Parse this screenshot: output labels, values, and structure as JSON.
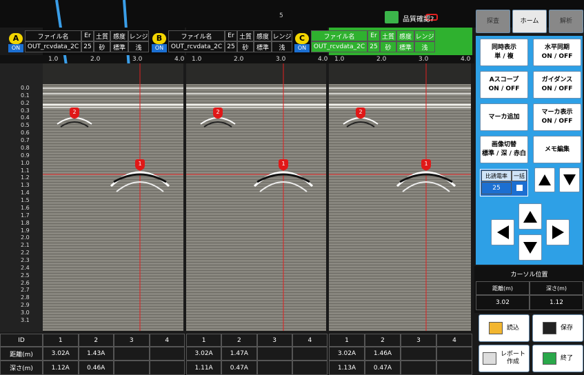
{
  "toolbar": {
    "page": "5",
    "status_label": "品質確認?"
  },
  "tabs": [
    "探査",
    "ホーム",
    "解析"
  ],
  "panels": [
    {
      "letter": "A",
      "state": "ON",
      "headers": [
        "ファイル名",
        "Er",
        "土質",
        "感度",
        "レンジ"
      ],
      "values": [
        "OUT_rcvdata_2C",
        "25",
        "砂",
        "標準",
        "浅"
      ],
      "x_ticks": [
        "1.0",
        "2.0",
        "3.0",
        "4.0"
      ],
      "markers": [
        "2",
        "1"
      ],
      "ids": [
        "1",
        "2",
        "3",
        "4"
      ],
      "distance": [
        "3.02A",
        "1.43A"
      ],
      "depth": [
        "1.12A",
        "0.46A"
      ]
    },
    {
      "letter": "B",
      "state": "ON",
      "headers": [
        "ファイル名",
        "Er",
        "土質",
        "感度",
        "レンジ"
      ],
      "values": [
        "OUT_rcvdata_2C",
        "25",
        "砂",
        "標準",
        "浅"
      ],
      "x_ticks": [
        "1.0",
        "2.0",
        "3.0",
        "4.0"
      ],
      "markers": [
        "2",
        "1"
      ],
      "ids": [
        "1",
        "2",
        "3",
        "4"
      ],
      "distance": [
        "3.02A",
        "1.47A"
      ],
      "depth": [
        "1.11A",
        "0.47A"
      ]
    },
    {
      "letter": "C",
      "state": "ON",
      "headers": [
        "ファイル名",
        "Er",
        "土質",
        "感度",
        "レンジ"
      ],
      "values": [
        "OUT_rcvdata_2C",
        "25",
        "砂",
        "標準",
        "浅"
      ],
      "x_ticks": [
        "1.0",
        "2.0",
        "3.0",
        "4.0"
      ],
      "markers": [
        "2",
        "1"
      ],
      "ids": [
        "1",
        "2",
        "3",
        "4"
      ],
      "distance": [
        "3.02A",
        "1.46A"
      ],
      "depth": [
        "1.13A",
        "0.47A"
      ]
    }
  ],
  "depth_ticks": [
    "0.0",
    "0.1",
    "0.2",
    "0.3",
    "0.4",
    "0.5",
    "0.6",
    "0.7",
    "0.8",
    "0.9",
    "1.0",
    "1.1",
    "1.2",
    "1.3",
    "1.4",
    "1.5",
    "1.6",
    "1.7",
    "1.8",
    "1.9",
    "2.0",
    "2.1",
    "2.2",
    "2.3",
    "2.4",
    "2.5",
    "2.6",
    "2.7",
    "2.8",
    "2.9",
    "3.0",
    "3.1"
  ],
  "table_labels": [
    "ID",
    "距離(m)",
    "深さ(m)"
  ],
  "buttons": [
    {
      "title": "同時表示",
      "option": "単 / 複"
    },
    {
      "title": "水平同期",
      "option": "ON / OFF"
    },
    {
      "title": "Aスコープ",
      "option": "ON / OFF"
    },
    {
      "title": "ガイダンス",
      "option": "ON / OFF"
    },
    {
      "title": "マーカ追加"
    },
    {
      "title": "マーカ表示",
      "option": "ON / OFF"
    },
    {
      "title": "画像切替",
      "option": "標準 / 深 / 赤白"
    },
    {
      "title": "メモ編集"
    }
  ],
  "permittivity": {
    "label": "比誘電率",
    "batch_label": "一括",
    "value": "25"
  },
  "cursor": {
    "title": "カーソル位置",
    "headers": [
      "距離(m)",
      "深さ(m)"
    ],
    "values": [
      "3.02",
      "1.12"
    ]
  },
  "file_buttons": [
    "読込",
    "保存",
    "レポート作成",
    "終了"
  ]
}
